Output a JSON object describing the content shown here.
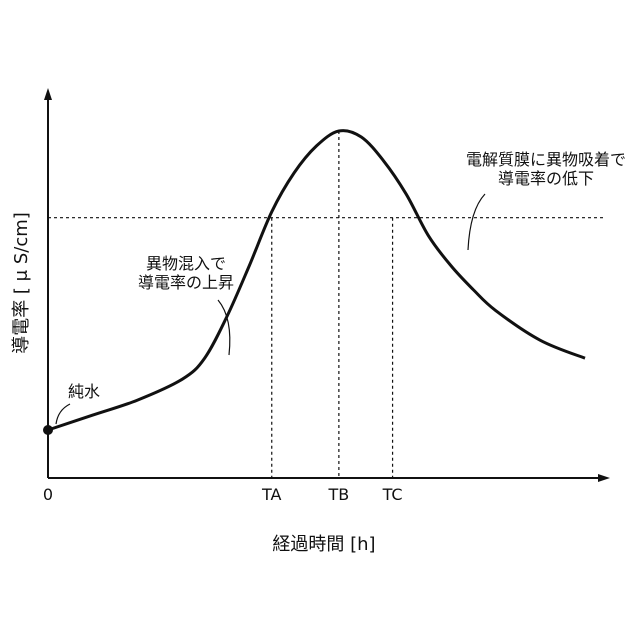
{
  "chart_data": {
    "type": "line",
    "title": "",
    "xlabel": "経過時間 [h]",
    "ylabel": "導電率 [ μ S/cm]",
    "x_ticks": [
      "0",
      "TA",
      "TB",
      "TC"
    ],
    "grid": false,
    "series": [
      {
        "name": "",
        "points": [
          [
            0,
            0.0
          ],
          [
            1,
            0.05
          ],
          [
            2,
            0.1
          ],
          [
            3,
            0.17
          ],
          [
            3.5,
            0.24
          ],
          [
            4,
            0.38
          ],
          [
            4.5,
            0.55
          ],
          [
            5,
            0.73
          ],
          [
            5.5,
            0.86
          ],
          [
            6,
            0.95
          ],
          [
            6.5,
            1.0
          ],
          [
            7,
            0.98
          ],
          [
            7.5,
            0.9
          ],
          [
            8,
            0.79
          ],
          [
            8.5,
            0.65
          ],
          [
            9,
            0.55
          ],
          [
            9.5,
            0.47
          ],
          [
            10,
            0.4
          ],
          [
            11,
            0.3
          ],
          [
            12,
            0.24
          ]
        ]
      }
    ],
    "threshold_y": 0.71,
    "markers": {
      "TA": 5.0,
      "TB": 6.5,
      "TC": 7.7
    },
    "annotations": {
      "pure_water": "純水",
      "rise": [
        "異物混入で",
        "導電率の上昇"
      ],
      "fall": [
        "電解質膜に異物吸着で",
        "導電率の低下"
      ]
    }
  }
}
